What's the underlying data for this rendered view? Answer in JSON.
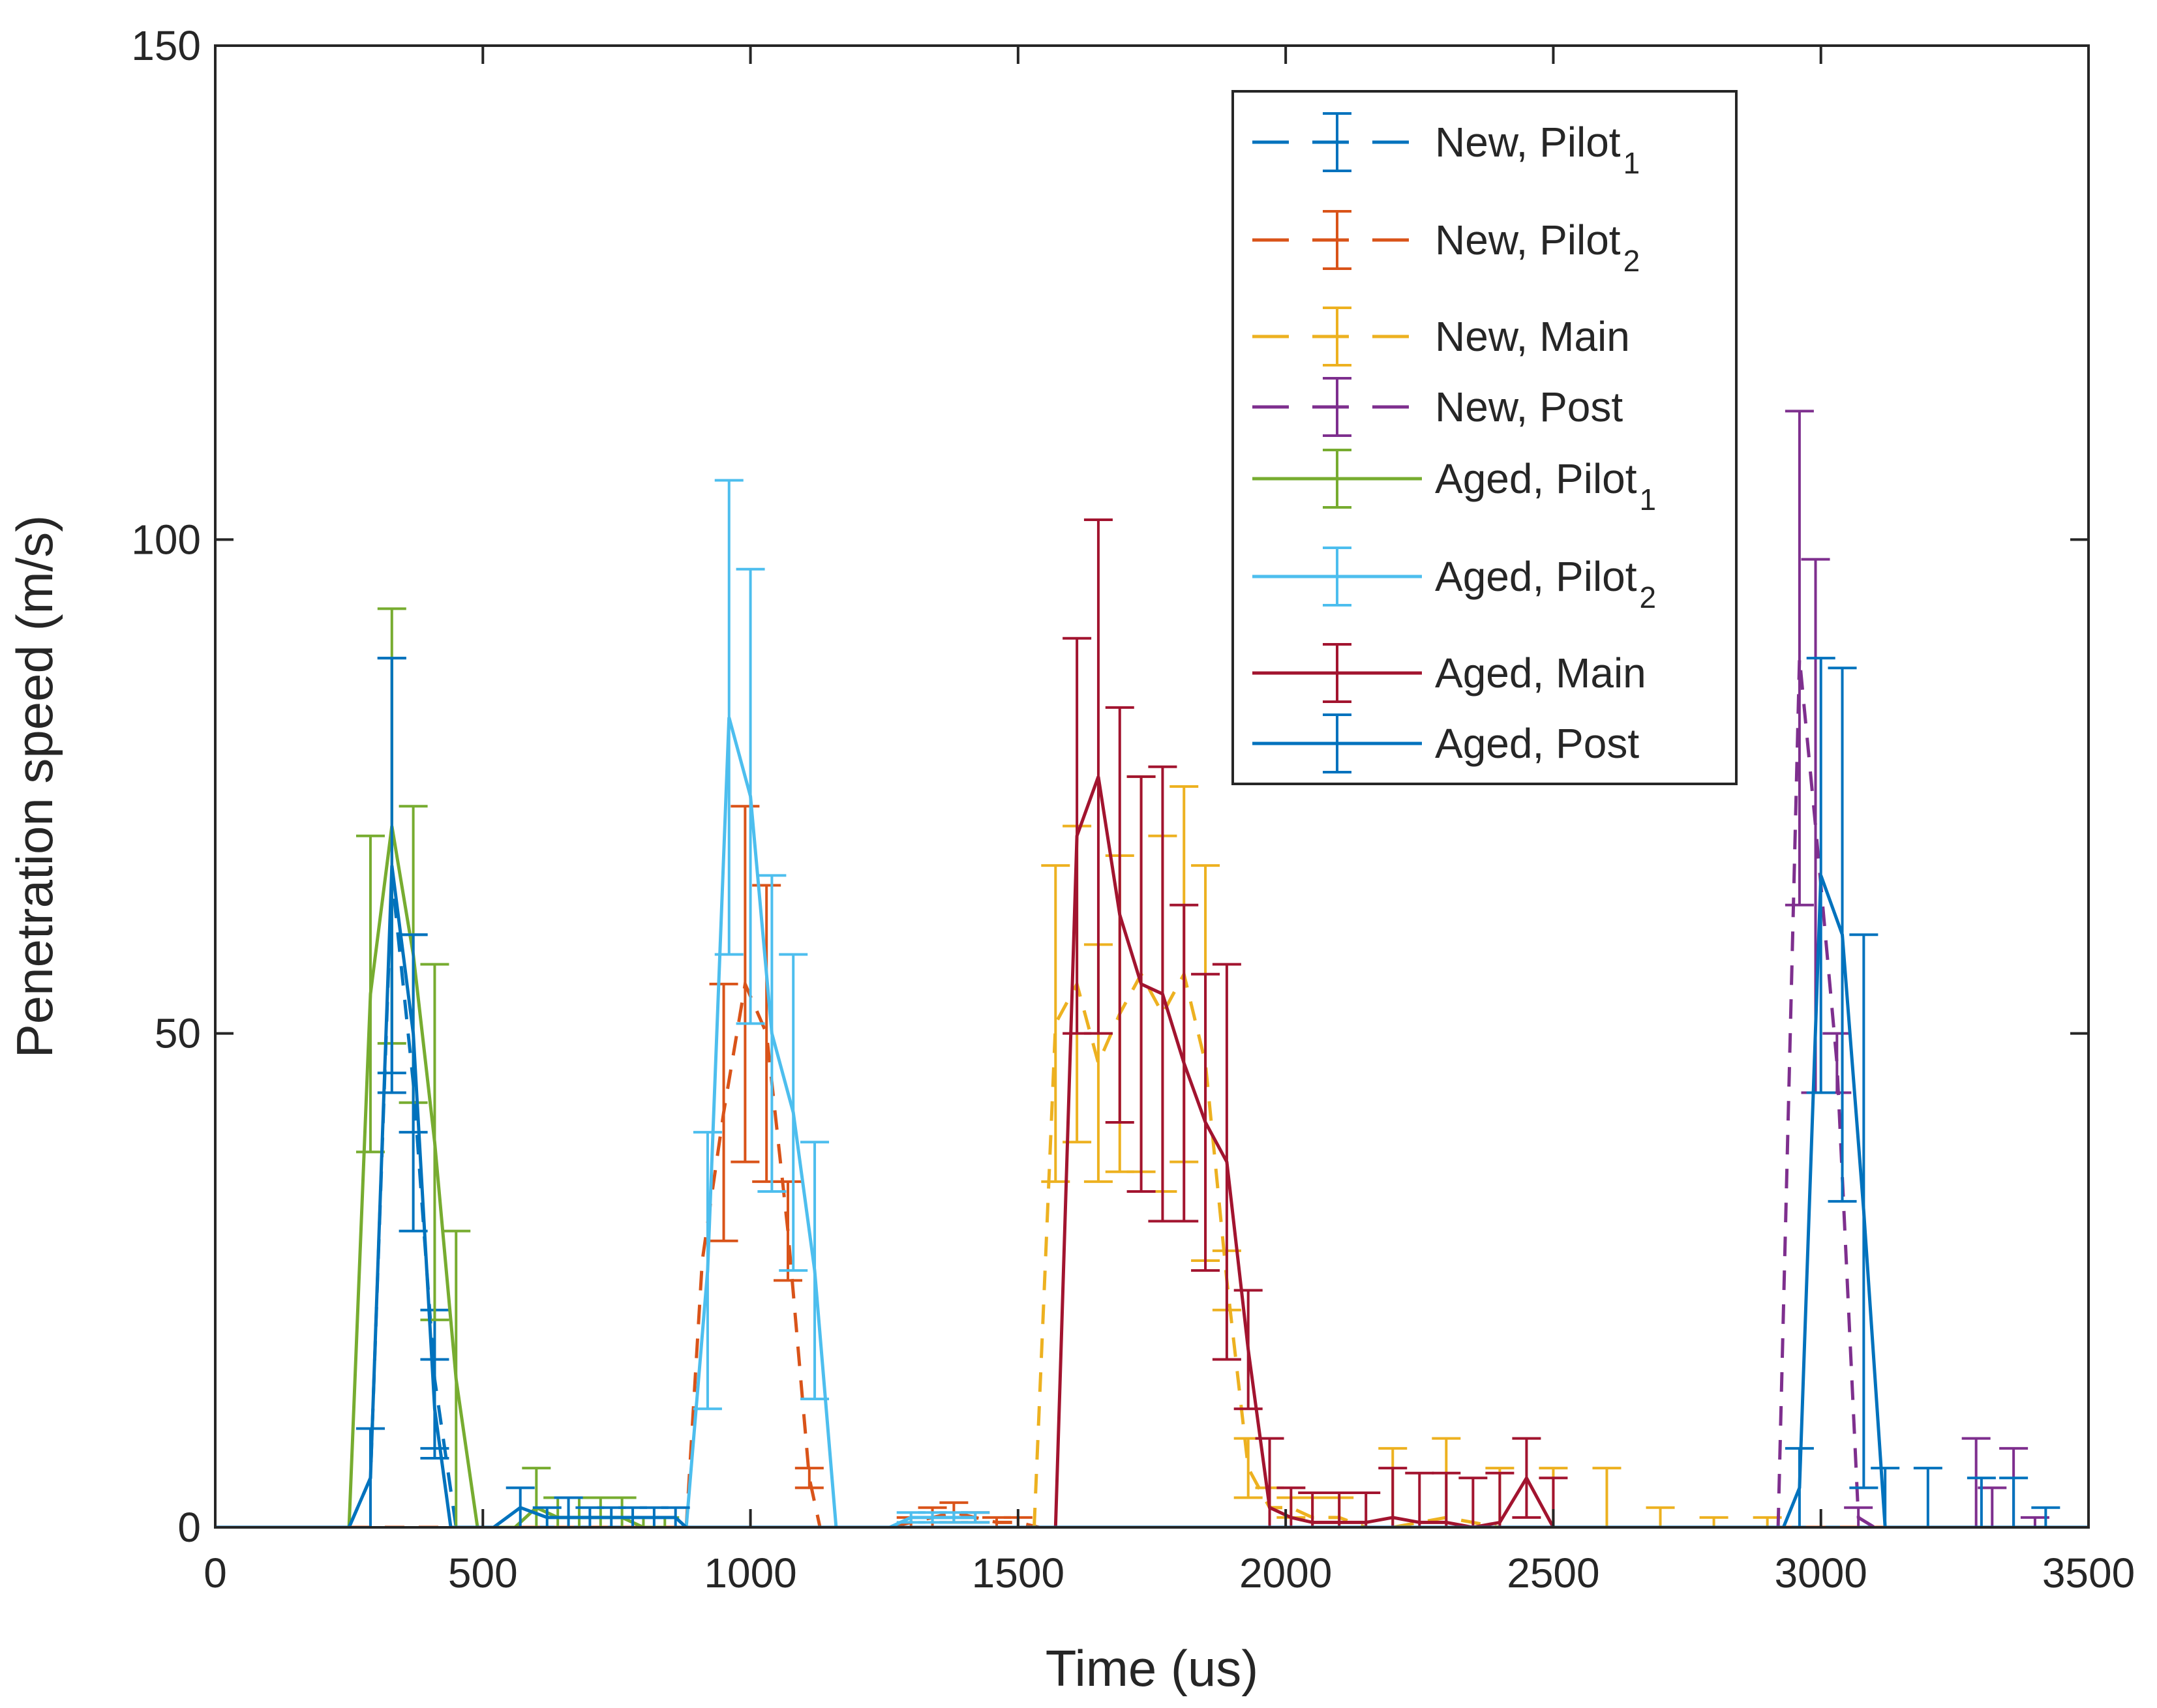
{
  "chart_data": {
    "type": "line",
    "title": "",
    "xlabel": "Time (us)",
    "ylabel": "Penetration speed (m/s)",
    "xlim": [
      0,
      3500
    ],
    "ylim": [
      0,
      150
    ],
    "xticks": [
      0,
      500,
      1000,
      1500,
      2000,
      2500,
      3000,
      3500
    ],
    "yticks": [
      0,
      50,
      100,
      150
    ],
    "legend_position": "top-right",
    "series": [
      {
        "name": "New, Pilot",
        "subscript": "1",
        "color": "#0072BD",
        "line": "dashed",
        "x": [
          0,
          250,
          290,
          330,
          370,
          410,
          450,
          3500
        ],
        "y": [
          0,
          0,
          5,
          66,
          45,
          15,
          0,
          0
        ],
        "error": [
          0,
          0,
          5,
          22,
          15,
          7,
          0,
          0
        ]
      },
      {
        "name": "New, Pilot",
        "subscript": "2",
        "color": "#D95319",
        "line": "dashed",
        "x": [
          0,
          1260,
          1300,
          1340,
          1380,
          1420,
          1460,
          1500,
          1540,
          3500
        ],
        "y": [
          0,
          0,
          0.5,
          1,
          1.5,
          1,
          0.5,
          0.5,
          0,
          0
        ],
        "error": [
          0,
          0,
          0.5,
          1,
          1,
          0.5,
          0.5,
          0.5,
          0,
          0
        ],
        "y_overlay": {
          "x": [
            880,
            910,
            950,
            990,
            1030,
            1070,
            1110,
            1130
          ],
          "y": [
            0,
            27,
            42,
            55,
            50,
            30,
            5,
            0
          ],
          "error": [
            0,
            0,
            13,
            18,
            15,
            5,
            1,
            0
          ]
        }
      },
      {
        "name": "New, Main",
        "subscript": "",
        "color": "#EDB120",
        "line": "dashed",
        "x": [
          1530,
          1570,
          1610,
          1650,
          1690,
          1730,
          1770,
          1810,
          1850,
          1890,
          1930,
          1970,
          2010,
          2050,
          2100,
          2150,
          2200,
          2300,
          2400,
          2500,
          2600,
          2700,
          2800,
          2900
        ],
        "y": [
          0,
          51,
          55,
          47,
          52,
          56,
          52,
          56,
          47,
          25,
          6,
          2,
          2,
          1,
          1,
          0,
          0,
          1,
          0,
          0,
          0,
          0,
          0,
          0
        ],
        "error": [
          0,
          16,
          16,
          12,
          16,
          20,
          18,
          19,
          20,
          3,
          3,
          2,
          1,
          2,
          2,
          0,
          8,
          8,
          6,
          6,
          6,
          2,
          1,
          1
        ]
      },
      {
        "name": "New, Post",
        "subscript": "",
        "color": "#7E2F8E",
        "line": "dashed",
        "x": [
          2920,
          2960,
          2990,
          3030,
          3070,
          3100,
          3290,
          3320,
          3360,
          3400,
          3500
        ],
        "y": [
          0,
          88,
          71,
          47,
          1,
          0,
          0,
          0,
          0,
          0,
          0
        ],
        "error": [
          0,
          25,
          27,
          3,
          1,
          0,
          9,
          4,
          8,
          1,
          0
        ]
      },
      {
        "name": "Aged, Pilot",
        "subscript": "1",
        "color": "#77AC30",
        "line": "solid",
        "x": [
          250,
          290,
          330,
          370,
          410,
          450,
          490,
          560,
          600,
          640,
          680,
          720,
          760,
          800,
          840
        ],
        "y": [
          0,
          54,
          71,
          58,
          39,
          15,
          0,
          0,
          2,
          1,
          1,
          1,
          1,
          0,
          0
        ],
        "error": [
          0,
          16,
          22,
          15,
          18,
          15,
          0,
          0,
          4,
          2,
          2,
          2,
          2,
          1,
          1
        ]
      },
      {
        "name": "Aged, Pilot",
        "subscript": "2",
        "color": "#4DBEEE",
        "line": "solid",
        "x": [
          880,
          920,
          960,
          1000,
          1040,
          1080,
          1120,
          1160,
          1260,
          1300,
          1340,
          1380,
          1420
        ],
        "y": [
          0,
          26,
          82,
          74,
          50,
          42,
          26,
          0,
          0,
          1,
          1,
          1,
          1
        ],
        "error": [
          0,
          14,
          24,
          23,
          16,
          16,
          13,
          0,
          0,
          0.5,
          0.5,
          0.5,
          0.5
        ]
      },
      {
        "name": "Aged, Main",
        "subscript": "",
        "color": "#A2142F",
        "line": "solid",
        "x": [
          1570,
          1610,
          1650,
          1690,
          1730,
          1770,
          1810,
          1850,
          1890,
          1930,
          1970,
          2010,
          2050,
          2100,
          2150,
          2200,
          2250,
          2300,
          2350,
          2400,
          2450,
          2500
        ],
        "y": [
          0,
          70,
          76,
          62,
          55,
          54,
          47,
          41,
          37,
          18,
          2,
          1,
          0.5,
          0.5,
          0.5,
          1,
          0.5,
          0.5,
          0,
          0.5,
          5,
          0
        ],
        "error": [
          0,
          20,
          26,
          21,
          21,
          23,
          16,
          15,
          20,
          6,
          7,
          3,
          3,
          3,
          3,
          5,
          5,
          5,
          5,
          5,
          4,
          5
        ]
      },
      {
        "name": "Aged, Post",
        "subscript": "",
        "color": "#0072BD",
        "line": "solid",
        "x": [
          0,
          250,
          290,
          330,
          370,
          410,
          440,
          520,
          570,
          620,
          660,
          700,
          740,
          780,
          820,
          860,
          880,
          2930,
          2960,
          3000,
          3040,
          3080,
          3120,
          3200,
          3300,
          3360,
          3420,
          3480,
          3500
        ],
        "y": [
          0,
          0,
          5,
          67,
          50,
          12,
          0,
          0,
          2,
          1,
          1,
          1,
          1,
          1,
          1,
          1,
          0,
          0,
          4,
          66,
          60,
          32,
          0,
          0,
          0,
          0,
          0,
          0,
          0
        ],
        "error": [
          0,
          0,
          5,
          21,
          10,
          5,
          0,
          0,
          2,
          1,
          2,
          1,
          1,
          1,
          1,
          1,
          0,
          0,
          4,
          22,
          27,
          28,
          6,
          6,
          5,
          5,
          2,
          0,
          0
        ]
      }
    ]
  }
}
